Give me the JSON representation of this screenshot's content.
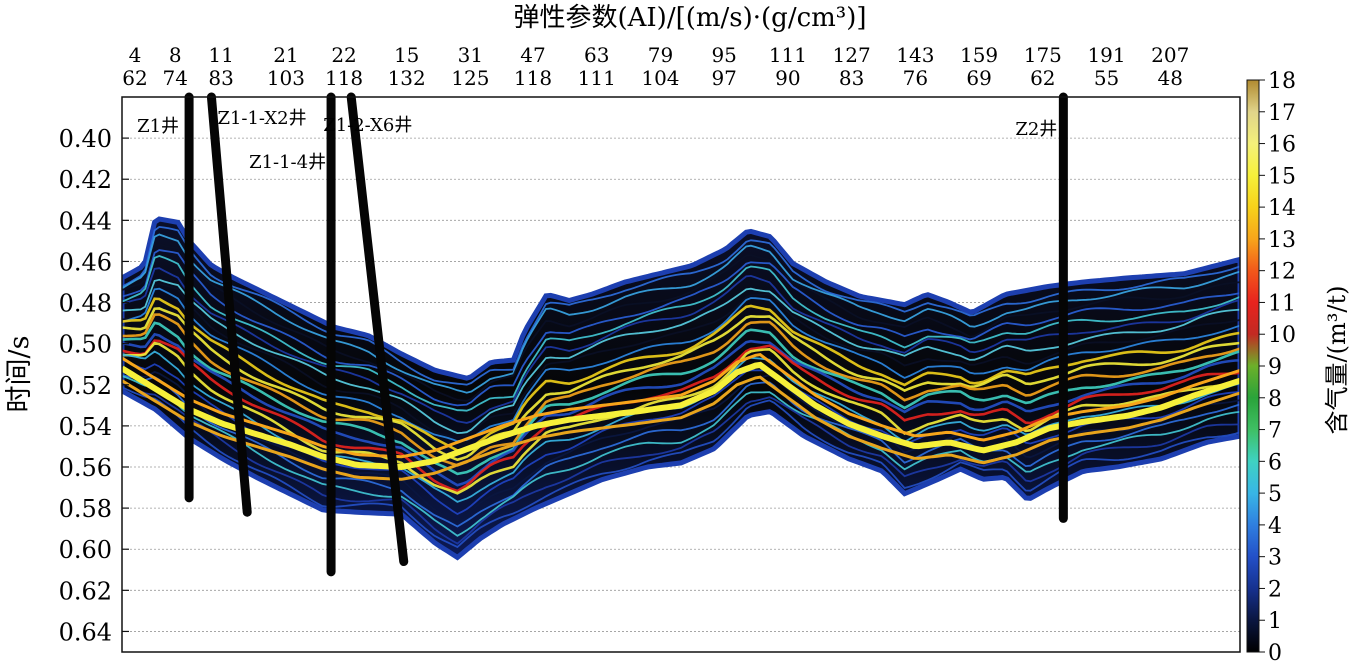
{
  "chart_data": {
    "type": "heatmap",
    "title": "弹性参数(AI)/[(m/s)·(g/cm³)]",
    "ylabel": "时间/s",
    "colorbar_label": "含气量/(m³/t)",
    "ylim": [
      0.38,
      0.65
    ],
    "y_ticks": [
      "0.40",
      "0.42",
      "0.44",
      "0.46",
      "0.48",
      "0.50",
      "0.52",
      "0.54",
      "0.56",
      "0.58",
      "0.60",
      "0.62",
      "0.64"
    ],
    "y_tick_values": [
      0.4,
      0.42,
      0.44,
      0.46,
      0.48,
      0.5,
      0.52,
      0.54,
      0.56,
      0.58,
      0.6,
      0.62,
      0.64
    ],
    "x_ticks_top": [
      "4",
      "8",
      "11",
      "21",
      "22",
      "15",
      "31",
      "47",
      "63",
      "79",
      "95",
      "111",
      "127",
      "143",
      "159",
      "175",
      "191",
      "207"
    ],
    "x_ticks_bottom": [
      "62",
      "74",
      "83",
      "103",
      "118",
      "132",
      "125",
      "118",
      "111",
      "104",
      "97",
      "90",
      "83",
      "76",
      "69",
      "62",
      "55",
      "48"
    ],
    "x_tick_positions": [
      0.0,
      0.036,
      0.077,
      0.135,
      0.187,
      0.243,
      0.3,
      0.356,
      0.413,
      0.47,
      0.527,
      0.584,
      0.641,
      0.698,
      0.755,
      0.812,
      0.869,
      0.926
    ],
    "colorbar": {
      "min": 0,
      "max": 18,
      "ticks": [
        "0",
        "1",
        "2",
        "3",
        "4",
        "5",
        "6",
        "7",
        "8",
        "9",
        "10",
        "11",
        "12",
        "13",
        "14",
        "15",
        "16",
        "17",
        "18"
      ],
      "colors": [
        "#000000",
        "#0a1640",
        "#16318f",
        "#2350c8",
        "#2f7fe0",
        "#38b6e6",
        "#3fd2c2",
        "#3fbf64",
        "#2aa33a",
        "#6cb02a",
        "#c22a22",
        "#e8231e",
        "#f2581a",
        "#f7a51a",
        "#f7d21a",
        "#f6f03a",
        "#f4f07a",
        "#e0d48a",
        "#b08a30"
      ]
    },
    "wells": [
      {
        "name": "Z1井",
        "x": 0.06,
        "top": 0.38,
        "bottom": 0.575
      },
      {
        "name": "Z1-1-X2井",
        "x": 0.08,
        "x_bottom": 0.112,
        "top": 0.38,
        "bottom": 0.582
      },
      {
        "name": "Z1-1-4井",
        "x": 0.187,
        "top": 0.38,
        "bottom": 0.611
      },
      {
        "name": "Z1-2-X6井",
        "x": 0.205,
        "x_bottom": 0.252,
        "top": 0.38,
        "bottom": 0.606
      },
      {
        "name": "Z2井",
        "x": 0.842,
        "top": 0.38,
        "bottom": 0.585
      }
    ],
    "section_top": [
      [
        0.0,
        0.468
      ],
      [
        0.02,
        0.462
      ],
      [
        0.03,
        0.439
      ],
      [
        0.05,
        0.441
      ],
      [
        0.06,
        0.45
      ],
      [
        0.08,
        0.462
      ],
      [
        0.1,
        0.468
      ],
      [
        0.13,
        0.476
      ],
      [
        0.16,
        0.484
      ],
      [
        0.19,
        0.492
      ],
      [
        0.22,
        0.496
      ],
      [
        0.25,
        0.505
      ],
      [
        0.28,
        0.513
      ],
      [
        0.31,
        0.517
      ],
      [
        0.33,
        0.509
      ],
      [
        0.35,
        0.508
      ],
      [
        0.36,
        0.494
      ],
      [
        0.38,
        0.476
      ],
      [
        0.4,
        0.479
      ],
      [
        0.42,
        0.476
      ],
      [
        0.45,
        0.47
      ],
      [
        0.48,
        0.466
      ],
      [
        0.51,
        0.462
      ],
      [
        0.54,
        0.454
      ],
      [
        0.56,
        0.445
      ],
      [
        0.58,
        0.448
      ],
      [
        0.6,
        0.461
      ],
      [
        0.63,
        0.47
      ],
      [
        0.66,
        0.477
      ],
      [
        0.7,
        0.481
      ],
      [
        0.72,
        0.476
      ],
      [
        0.74,
        0.48
      ],
      [
        0.76,
        0.485
      ],
      [
        0.79,
        0.476
      ],
      [
        0.83,
        0.472
      ],
      [
        0.86,
        0.47
      ],
      [
        0.9,
        0.468
      ],
      [
        0.95,
        0.466
      ],
      [
        1.0,
        0.459
      ]
    ],
    "section_bottom": [
      [
        0.0,
        0.523
      ],
      [
        0.03,
        0.532
      ],
      [
        0.06,
        0.546
      ],
      [
        0.09,
        0.556
      ],
      [
        0.12,
        0.565
      ],
      [
        0.15,
        0.573
      ],
      [
        0.18,
        0.581
      ],
      [
        0.21,
        0.582
      ],
      [
        0.25,
        0.583
      ],
      [
        0.28,
        0.597
      ],
      [
        0.3,
        0.604
      ],
      [
        0.32,
        0.595
      ],
      [
        0.34,
        0.588
      ],
      [
        0.37,
        0.58
      ],
      [
        0.4,
        0.573
      ],
      [
        0.43,
        0.566
      ],
      [
        0.47,
        0.56
      ],
      [
        0.5,
        0.558
      ],
      [
        0.53,
        0.551
      ],
      [
        0.56,
        0.535
      ],
      [
        0.58,
        0.533
      ],
      [
        0.61,
        0.545
      ],
      [
        0.65,
        0.556
      ],
      [
        0.68,
        0.562
      ],
      [
        0.7,
        0.573
      ],
      [
        0.73,
        0.566
      ],
      [
        0.75,
        0.561
      ],
      [
        0.77,
        0.566
      ],
      [
        0.79,
        0.565
      ],
      [
        0.81,
        0.576
      ],
      [
        0.83,
        0.57
      ],
      [
        0.86,
        0.562
      ],
      [
        0.89,
        0.56
      ],
      [
        0.93,
        0.556
      ],
      [
        0.97,
        0.548
      ],
      [
        1.0,
        0.545
      ]
    ],
    "main_gas_band": [
      [
        0.0,
        0.512
      ],
      [
        0.03,
        0.522
      ],
      [
        0.06,
        0.532
      ],
      [
        0.09,
        0.539
      ],
      [
        0.12,
        0.544
      ],
      [
        0.15,
        0.549
      ],
      [
        0.18,
        0.555
      ],
      [
        0.21,
        0.559
      ],
      [
        0.25,
        0.56
      ],
      [
        0.28,
        0.557
      ],
      [
        0.31,
        0.551
      ],
      [
        0.34,
        0.545
      ],
      [
        0.37,
        0.54
      ],
      [
        0.4,
        0.537
      ],
      [
        0.43,
        0.535
      ],
      [
        0.46,
        0.533
      ],
      [
        0.5,
        0.53
      ],
      [
        0.53,
        0.523
      ],
      [
        0.55,
        0.514
      ],
      [
        0.57,
        0.51
      ],
      [
        0.59,
        0.518
      ],
      [
        0.62,
        0.53
      ],
      [
        0.65,
        0.539
      ],
      [
        0.68,
        0.545
      ],
      [
        0.71,
        0.55
      ],
      [
        0.74,
        0.548
      ],
      [
        0.77,
        0.552
      ],
      [
        0.8,
        0.548
      ],
      [
        0.83,
        0.541
      ],
      [
        0.86,
        0.538
      ],
      [
        0.9,
        0.535
      ],
      [
        0.93,
        0.531
      ],
      [
        0.96,
        0.525
      ],
      [
        1.0,
        0.518
      ]
    ]
  }
}
